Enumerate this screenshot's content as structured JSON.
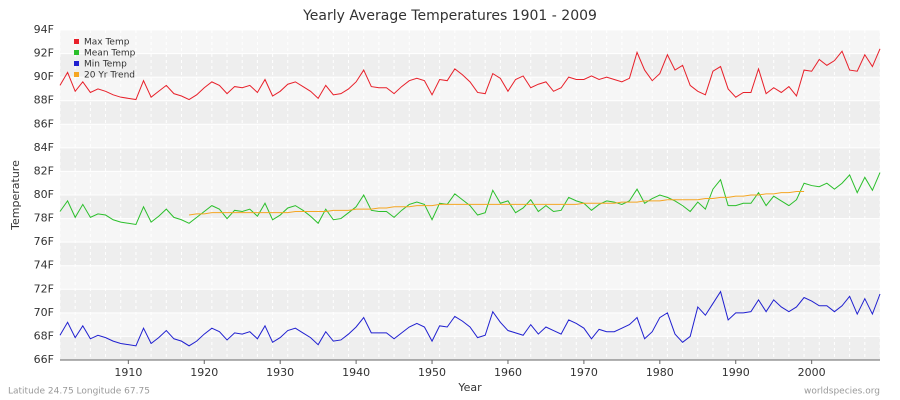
{
  "chart_data": {
    "type": "line",
    "title": "Yearly Average Temperatures 1901 - 2009",
    "x_label": "Year",
    "y_label": "Temperature",
    "footer_left": "Latitude 24.75 Longitude 67.75",
    "footer_right": "worldspecies.org",
    "xlim": [
      1901,
      2009
    ],
    "ylim": [
      66,
      94
    ],
    "xticks": [
      1910,
      1920,
      1930,
      1940,
      1950,
      1960,
      1970,
      1980,
      1990,
      2000
    ],
    "yticks": [
      {
        "value": 66,
        "label": "66F"
      },
      {
        "value": 68,
        "label": "68F"
      },
      {
        "value": 70,
        "label": "70F"
      },
      {
        "value": 72,
        "label": "72F"
      },
      {
        "value": 74,
        "label": "74F"
      },
      {
        "value": 76,
        "label": "76F"
      },
      {
        "value": 78,
        "label": "78F"
      },
      {
        "value": 80,
        "label": "80F"
      },
      {
        "value": 82,
        "label": "82F"
      },
      {
        "value": 84,
        "label": "84F"
      },
      {
        "value": 86,
        "label": "86F"
      },
      {
        "value": 88,
        "label": "88F"
      },
      {
        "value": 90,
        "label": "90F"
      },
      {
        "value": 92,
        "label": "92F"
      },
      {
        "value": 94,
        "label": "94F"
      }
    ],
    "grid": true,
    "legend_position": "top-left",
    "x": [
      1901,
      1902,
      1903,
      1904,
      1905,
      1906,
      1907,
      1908,
      1909,
      1910,
      1911,
      1912,
      1913,
      1914,
      1915,
      1916,
      1917,
      1918,
      1919,
      1920,
      1921,
      1922,
      1923,
      1924,
      1925,
      1926,
      1927,
      1928,
      1929,
      1930,
      1931,
      1932,
      1933,
      1934,
      1935,
      1936,
      1937,
      1938,
      1939,
      1940,
      1941,
      1942,
      1943,
      1944,
      1945,
      1946,
      1947,
      1948,
      1949,
      1950,
      1951,
      1952,
      1953,
      1954,
      1955,
      1956,
      1957,
      1958,
      1959,
      1960,
      1961,
      1962,
      1963,
      1964,
      1965,
      1966,
      1967,
      1968,
      1969,
      1970,
      1971,
      1972,
      1973,
      1974,
      1975,
      1976,
      1977,
      1978,
      1979,
      1980,
      1981,
      1982,
      1983,
      1984,
      1985,
      1986,
      1987,
      1988,
      1989,
      1990,
      1991,
      1992,
      1993,
      1994,
      1995,
      1996,
      1997,
      1998,
      1999,
      2000,
      2001,
      2002,
      2003,
      2004,
      2005,
      2006,
      2007,
      2008,
      2009
    ],
    "series": [
      {
        "name": "Max Temp",
        "color": "#e8202a",
        "values": [
          89.3,
          90.4,
          88.8,
          89.6,
          88.7,
          89.0,
          88.8,
          88.5,
          88.3,
          88.2,
          88.1,
          89.7,
          88.3,
          88.8,
          89.3,
          88.6,
          88.4,
          88.1,
          88.5,
          89.1,
          89.6,
          89.3,
          88.6,
          89.2,
          89.1,
          89.3,
          88.7,
          89.8,
          88.4,
          88.8,
          89.4,
          89.6,
          89.2,
          88.8,
          88.2,
          89.3,
          88.5,
          88.6,
          89.0,
          89.6,
          90.6,
          89.2,
          89.1,
          89.1,
          88.6,
          89.2,
          89.7,
          89.9,
          89.7,
          88.5,
          89.8,
          89.7,
          90.7,
          90.2,
          89.6,
          88.7,
          88.6,
          90.3,
          89.9,
          88.8,
          89.8,
          90.1,
          89.1,
          89.4,
          89.6,
          88.8,
          89.1,
          90.0,
          89.8,
          89.8,
          90.1,
          89.8,
          90.0,
          89.8,
          89.6,
          89.9,
          92.1,
          90.6,
          89.7,
          90.3,
          91.9,
          90.6,
          91.0,
          89.3,
          88.8,
          88.5,
          90.5,
          90.9,
          89.0,
          88.3,
          88.7,
          88.7,
          90.7,
          88.6,
          89.1,
          88.7,
          89.2,
          88.4,
          90.6,
          90.5,
          91.5,
          91.0,
          91.4,
          92.2,
          90.6,
          90.5,
          91.9,
          90.9,
          92.4
        ]
      },
      {
        "name": "Mean Temp",
        "color": "#2bbf2b",
        "values": [
          78.6,
          79.5,
          78.1,
          79.2,
          78.1,
          78.4,
          78.3,
          77.9,
          77.7,
          77.6,
          77.5,
          79.0,
          77.7,
          78.2,
          78.8,
          78.1,
          77.9,
          77.6,
          78.1,
          78.6,
          79.1,
          78.8,
          78.0,
          78.7,
          78.6,
          78.8,
          78.2,
          79.3,
          77.9,
          78.3,
          78.9,
          79.1,
          78.7,
          78.2,
          77.6,
          78.8,
          77.9,
          78.0,
          78.5,
          79.0,
          80.0,
          78.7,
          78.6,
          78.6,
          78.1,
          78.7,
          79.2,
          79.4,
          79.2,
          77.9,
          79.3,
          79.2,
          80.1,
          79.6,
          79.1,
          78.3,
          78.5,
          80.4,
          79.3,
          79.5,
          78.5,
          78.9,
          79.6,
          78.6,
          79.1,
          78.6,
          78.7,
          79.8,
          79.5,
          79.3,
          78.7,
          79.2,
          79.5,
          79.4,
          79.2,
          79.5,
          80.5,
          79.3,
          79.7,
          80.0,
          79.8,
          79.5,
          79.1,
          78.6,
          79.4,
          78.8,
          80.5,
          81.3,
          79.1,
          79.1,
          79.3,
          79.3,
          80.2,
          79.1,
          79.9,
          79.5,
          79.1,
          79.6,
          81.0,
          80.8,
          80.7,
          81.0,
          80.5,
          81.0,
          81.7,
          80.2,
          81.5,
          80.4,
          81.9
        ]
      },
      {
        "name": "Min Temp",
        "color": "#2020d0",
        "values": [
          68.1,
          69.2,
          67.9,
          68.9,
          67.8,
          68.1,
          67.9,
          67.6,
          67.4,
          67.3,
          67.2,
          68.7,
          67.4,
          67.9,
          68.5,
          67.8,
          67.6,
          67.2,
          67.6,
          68.2,
          68.7,
          68.4,
          67.7,
          68.3,
          68.2,
          68.4,
          67.8,
          68.9,
          67.5,
          67.9,
          68.5,
          68.7,
          68.3,
          67.9,
          67.3,
          68.4,
          67.6,
          67.7,
          68.2,
          68.8,
          69.6,
          68.3,
          68.3,
          68.3,
          67.8,
          68.3,
          68.8,
          69.1,
          68.8,
          67.6,
          68.9,
          68.8,
          69.7,
          69.3,
          68.8,
          67.9,
          68.1,
          70.1,
          69.2,
          68.5,
          68.3,
          68.1,
          69.0,
          68.2,
          68.8,
          68.5,
          68.2,
          69.4,
          69.1,
          68.7,
          67.8,
          68.6,
          68.4,
          68.4,
          68.7,
          69.0,
          69.6,
          67.8,
          68.4,
          69.6,
          70.0,
          68.2,
          67.5,
          68.0,
          70.5,
          69.8,
          70.8,
          71.8,
          69.4,
          70.0,
          70.0,
          70.1,
          71.1,
          70.1,
          71.1,
          70.5,
          70.1,
          70.5,
          71.3,
          71.0,
          70.6,
          70.6,
          70.1,
          70.6,
          71.4,
          69.9,
          71.2,
          69.9,
          71.6
        ]
      },
      {
        "name": "20 Yr Trend",
        "color": "#f5a623",
        "values": [
          null,
          null,
          null,
          null,
          null,
          null,
          null,
          null,
          null,
          null,
          null,
          null,
          null,
          null,
          null,
          null,
          null,
          78.3,
          78.4,
          78.4,
          78.5,
          78.5,
          78.5,
          78.5,
          78.5,
          78.5,
          78.5,
          78.5,
          78.5,
          78.5,
          78.5,
          78.6,
          78.6,
          78.6,
          78.6,
          78.6,
          78.7,
          78.7,
          78.7,
          78.8,
          78.8,
          78.8,
          78.9,
          78.9,
          79.0,
          79.0,
          79.0,
          79.1,
          79.1,
          79.1,
          79.2,
          79.2,
          79.2,
          79.2,
          79.2,
          79.2,
          79.2,
          79.2,
          79.2,
          79.2,
          79.2,
          79.2,
          79.2,
          79.2,
          79.2,
          79.2,
          79.2,
          79.2,
          79.2,
          79.3,
          79.3,
          79.3,
          79.3,
          79.3,
          79.4,
          79.4,
          79.4,
          79.5,
          79.5,
          79.5,
          79.6,
          79.6,
          79.6,
          79.6,
          79.6,
          79.7,
          79.7,
          79.8,
          79.8,
          79.9,
          79.9,
          80.0,
          80.0,
          80.1,
          80.1,
          80.2,
          80.2,
          80.3,
          80.3,
          null,
          null,
          null,
          null,
          null,
          null,
          null,
          null,
          null,
          null
        ]
      }
    ]
  }
}
